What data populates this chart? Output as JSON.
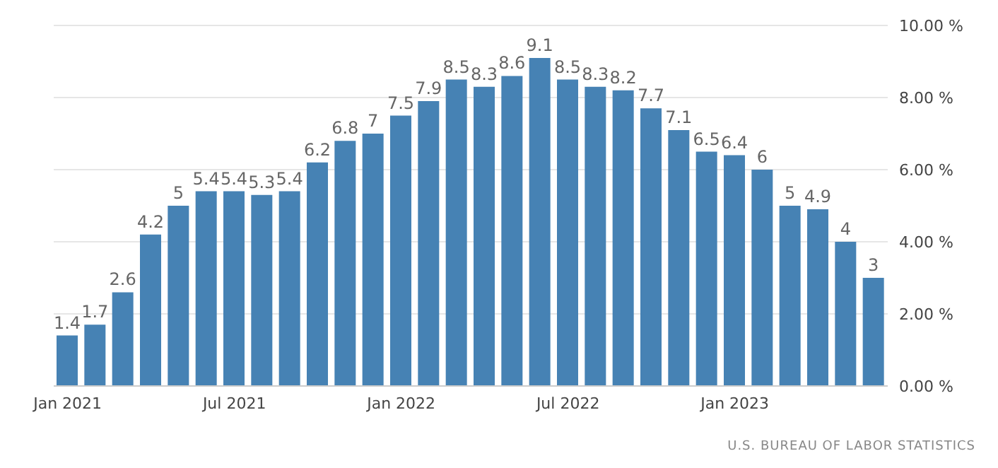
{
  "chart_data": {
    "type": "bar",
    "categories": [
      "Jan 2021",
      null,
      null,
      null,
      null,
      null,
      "Jul 2021",
      null,
      null,
      null,
      null,
      null,
      "Jan 2022",
      null,
      null,
      null,
      null,
      null,
      "Jul 2022",
      null,
      null,
      null,
      null,
      null,
      "Jan 2023",
      null,
      null,
      null,
      null,
      null
    ],
    "values": [
      1.4,
      1.7,
      2.6,
      4.2,
      5,
      5.4,
      5.4,
      5.3,
      5.4,
      6.2,
      6.8,
      7,
      7.5,
      7.9,
      8.5,
      8.3,
      8.6,
      9.1,
      8.5,
      8.3,
      8.2,
      7.7,
      7.1,
      6.5,
      6.4,
      6,
      5,
      4.9,
      4,
      3
    ],
    "color": "#4682b4",
    "ylim": [
      0,
      10
    ],
    "yticks": [
      {
        "value": 0,
        "label": "0.00 %"
      },
      {
        "value": 2,
        "label": "2.00 %"
      },
      {
        "value": 4,
        "label": "4.00 %"
      },
      {
        "value": 6,
        "label": "6.00 %"
      },
      {
        "value": 8,
        "label": "8.00 %"
      },
      {
        "value": 10,
        "label": "10.00 %"
      }
    ],
    "grid": "y",
    "data_labels": true,
    "annotations": [
      "U.S. BUREAU OF LABOR STATISTICS"
    ]
  }
}
